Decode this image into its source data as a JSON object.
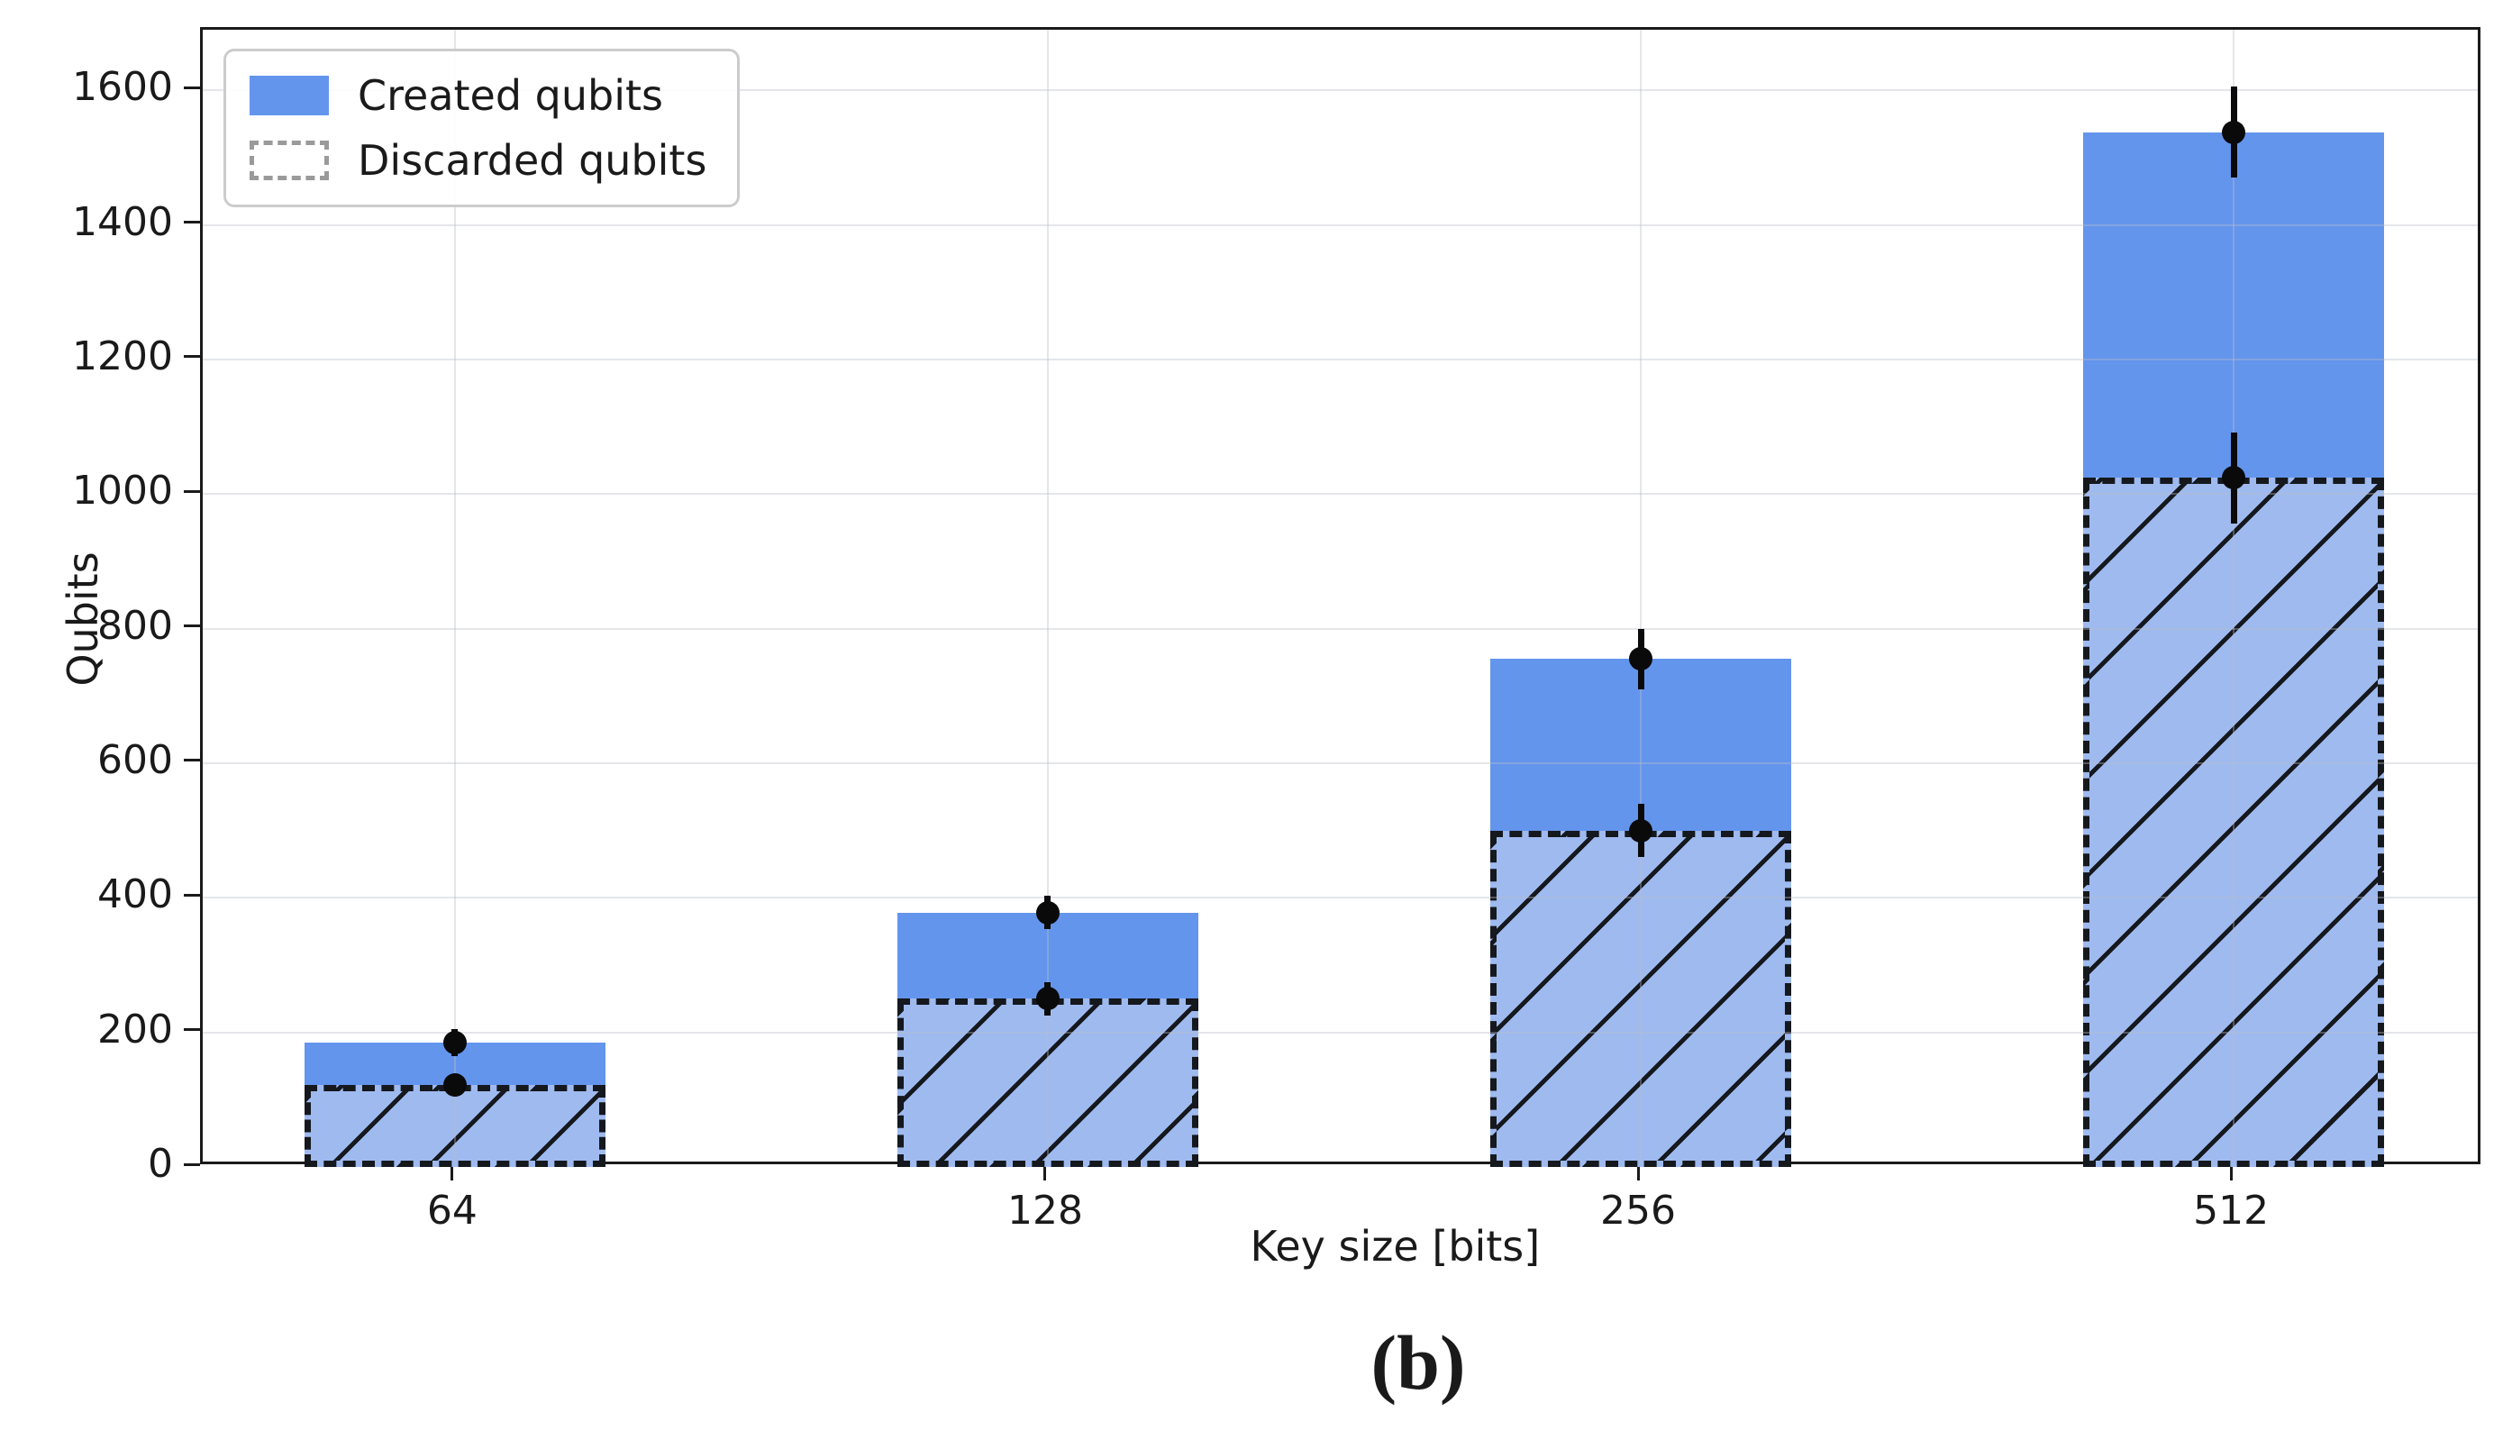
{
  "figure": {
    "caption": "(b)"
  },
  "chart_data": {
    "type": "bar",
    "title": "",
    "xlabel": "Key size [bits]",
    "ylabel": "Qubits",
    "categories": [
      "64",
      "128",
      "256",
      "512"
    ],
    "series": [
      {
        "name": "Created qubits",
        "style": "solid",
        "color": "#6495ED",
        "values": [
          185,
          378,
          755,
          1538
        ],
        "errors": [
          20,
          25,
          45,
          68
        ]
      },
      {
        "name": "Discarded qubits",
        "style": "hatched-dashed",
        "color": "#9FBAEF",
        "values": [
          122,
          250,
          500,
          1024
        ],
        "errors": [
          15,
          25,
          40,
          68
        ]
      }
    ],
    "ylim": [
      0,
      1690
    ],
    "yticks": [
      0,
      200,
      400,
      600,
      800,
      1000,
      1200,
      1400,
      1600
    ],
    "grid": true,
    "legend_position": "upper left",
    "error_bar_color": "#0a0a0a",
    "hatch_color": "#15181d",
    "hatch_pattern": "/"
  }
}
